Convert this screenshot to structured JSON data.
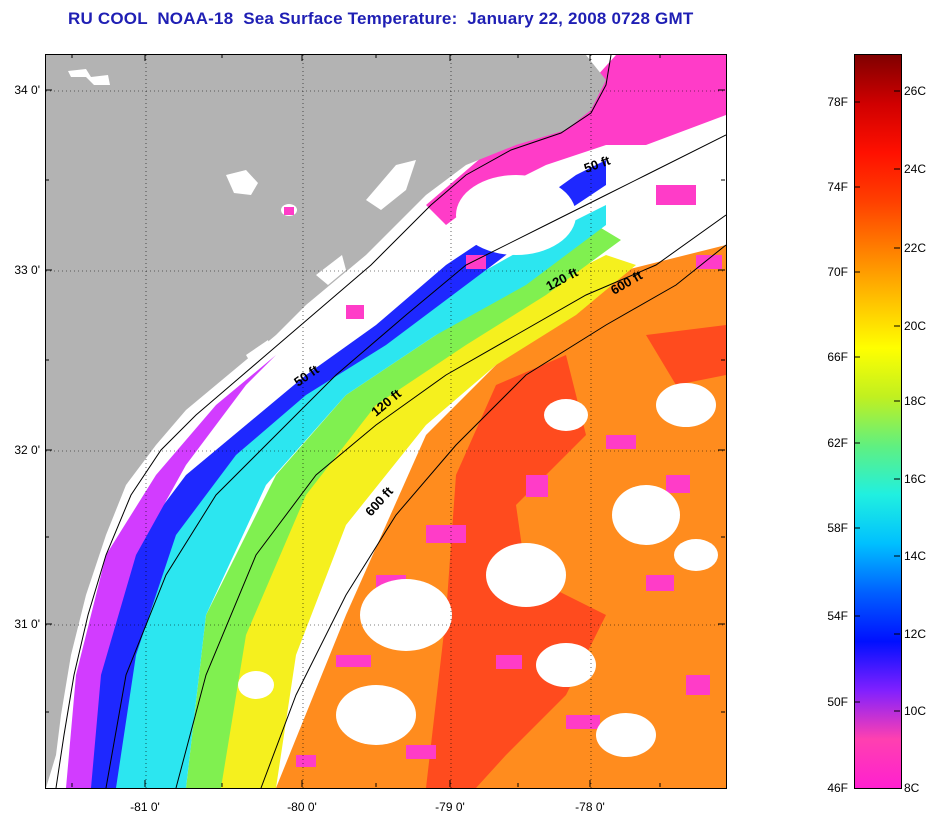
{
  "title": "RU COOL  NOAA-18  Sea Surface Temperature:  January 22, 2008 0728 GMT",
  "map": {
    "lat_labels": [
      "34 0'",
      "33 0'",
      "32 0'",
      "31 0'"
    ],
    "lon_labels": [
      "-81 0'",
      "-80 0'",
      "-79 0'",
      "-78 0'"
    ],
    "contours": {
      "c50_north": "50 ft",
      "c50_south": "50 ft",
      "c120_north": "120 ft",
      "c120_south": "120 ft",
      "c600_north": "600 ft",
      "c600_south": "600 ft"
    },
    "colors": {
      "land": "#b3b3b3",
      "no_data": "#ffffff",
      "cold_pink": "#ff3cc8",
      "magenta": "#d23cff",
      "blue": "#1e28ff",
      "cyan": "#2ce6f0",
      "green": "#80f050",
      "yellow": "#f5f01e",
      "orange": "#ff8c1e",
      "red_orange": "#ff4b1e"
    }
  },
  "colorbar": {
    "f_labels": [
      "78F",
      "74F",
      "70F",
      "66F",
      "62F",
      "58F",
      "54F",
      "50F",
      "46F"
    ],
    "c_labels": [
      "26C",
      "24C",
      "22C",
      "20C",
      "18C",
      "16C",
      "14C",
      "12C",
      "10C",
      "8C"
    ],
    "stops": [
      "#ff20d0",
      "#ff40b0",
      "#8020ff",
      "#0010ff",
      "#0060ff",
      "#00c0ff",
      "#20f0e0",
      "#60f080",
      "#c0f020",
      "#ffff00",
      "#ffc000",
      "#ff8000",
      "#ff4000",
      "#ff1000",
      "#d00000",
      "#800000"
    ]
  }
}
